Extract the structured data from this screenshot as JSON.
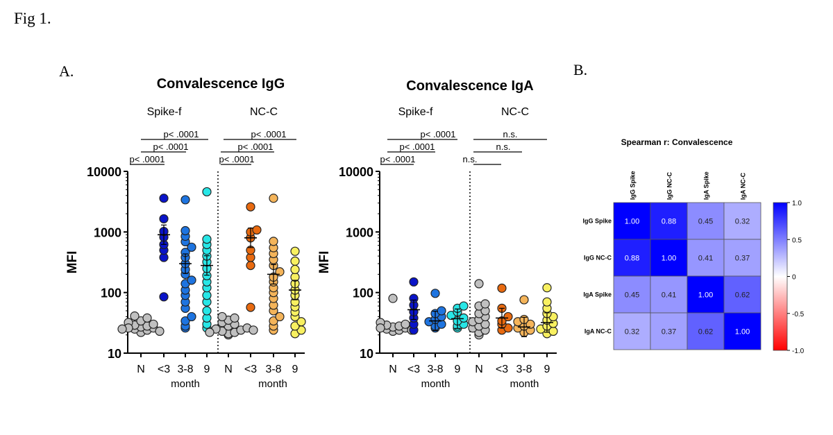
{
  "figure": {
    "label": "Fig 1.",
    "panel_a_label": "A.",
    "panel_b_label": "B."
  },
  "chart_data": [
    {
      "type": "scatter",
      "title": "Convalescence IgG",
      "ylabel": "MFI",
      "yscale": "log",
      "ylim": [
        10,
        10000
      ],
      "yticks": [
        "10",
        "100",
        "1000",
        "10000"
      ],
      "xlabel": "month",
      "groups": [
        {
          "name": "Spike-f",
          "categories": [
            "N",
            "<3",
            "3-8",
            "9"
          ],
          "colors": [
            "#c0c0c0",
            "#0a14c8",
            "#1e74e0",
            "#28e6e6"
          ],
          "means": [
            28,
            900,
            300,
            280
          ],
          "values": [
            [
              22,
              24,
              25,
              26,
              27,
              28,
              29,
              30,
              32,
              34,
              38,
              41,
              26,
              23,
              25
            ],
            [
              85,
              380,
              500,
              620,
              820,
              1020,
              1650,
              3600
            ],
            [
              26,
              28,
              34,
              40,
              55,
              70,
              90,
              110,
              140,
              160,
              200,
              240,
              300,
              380,
              460,
              560,
              690,
              850,
              1050,
              3400
            ],
            [
              26,
              30,
              38,
              50,
              70,
              90,
              120,
              150,
              190,
              250,
              320,
              400,
              500,
              620,
              760,
              4600
            ]
          ]
        },
        {
          "name": "NC-C",
          "categories": [
            "N",
            "<3",
            "3-8",
            "9"
          ],
          "colors": [
            "#c0c0c0",
            "#e86a10",
            "#f4b45a",
            "#f8f060"
          ],
          "means": [
            28,
            800,
            200,
            110
          ],
          "values": [
            [
              20,
              21,
              22,
              23,
              24,
              25,
              26,
              28,
              30,
              32,
              35,
              38,
              40,
              22,
              24
            ],
            [
              57,
              280,
              380,
              500,
              800,
              1000,
              1080,
              2600
            ],
            [
              24,
              28,
              34,
              40,
              50,
              62,
              80,
              100,
              120,
              150,
              180,
              220,
              280,
              350,
              440,
              550,
              700,
              3600
            ],
            [
              21,
              24,
              28,
              33,
              40,
              48,
              58,
              70,
              90,
              110,
              140,
              180,
              240,
              330,
              480
            ]
          ]
        }
      ],
      "significance": [
        {
          "label": "p< .0001"
        },
        {
          "label": "p< .0001"
        },
        {
          "label": "p< .0001"
        },
        {
          "label": "p< .0001"
        },
        {
          "label": "p< .0001"
        },
        {
          "label": "p< .0001"
        }
      ]
    },
    {
      "type": "scatter",
      "title": "Convalescence IgA",
      "ylabel": "MFI",
      "yscale": "log",
      "ylim": [
        10,
        10000
      ],
      "yticks": [
        "10",
        "100",
        "1000",
        "10000"
      ],
      "xlabel": "month",
      "groups": [
        {
          "name": "Spike-f",
          "categories": [
            "N",
            "<3",
            "3-8",
            "9"
          ],
          "colors": [
            "#c0c0c0",
            "#0a14c8",
            "#1e74e0",
            "#28e6e6"
          ],
          "means": [
            27,
            52,
            34,
            37
          ],
          "values": [
            [
              23,
              24,
              25,
              26,
              27,
              28,
              29,
              30,
              32,
              80,
              26,
              24
            ],
            [
              24,
              30,
              38,
              48,
              62,
              80,
              150
            ],
            [
              26,
              28,
              30,
              33,
              36,
              40,
              45,
              50,
              97
            ],
            [
              26,
              28,
              30,
              34,
              38,
              42,
              48,
              55,
              60
            ]
          ]
        },
        {
          "name": "NC-C",
          "categories": [
            "N",
            "<3",
            "3-8",
            "9"
          ],
          "colors": [
            "#c0c0c0",
            "#e86a10",
            "#f4b45a",
            "#f8f060"
          ],
          "means": [
            28,
            38,
            27,
            32
          ],
          "values": [
            [
              20,
              22,
              24,
              26,
              28,
              30,
              33,
              36,
              40,
              45,
              50,
              60,
              65,
              140
            ],
            [
              24,
              26,
              30,
              34,
              40,
              55,
              118
            ],
            [
              22,
              24,
              26,
              28,
              30,
              33,
              36,
              76
            ],
            [
              21,
              23,
              25,
              28,
              31,
              35,
              40,
              45,
              55,
              70,
              120
            ]
          ]
        }
      ],
      "significance": [
        {
          "label": "p< .0001"
        },
        {
          "label": "p< .0001"
        },
        {
          "label": "p< .0001"
        },
        {
          "label": "n.s."
        },
        {
          "label": "n.s."
        },
        {
          "label": "n.s."
        }
      ]
    },
    {
      "type": "heatmap",
      "title": "Spearman r: Convalescence",
      "rows": [
        "IgG Spike",
        "IgG NC-C",
        "IgA Spike",
        "IgA NC-C"
      ],
      "columns": [
        "IgG Spike",
        "IgG NC-C",
        "IgA Spike",
        "IgA NC-C"
      ],
      "values": [
        [
          1.0,
          0.88,
          0.45,
          0.32
        ],
        [
          0.88,
          1.0,
          0.41,
          0.37
        ],
        [
          0.45,
          0.41,
          1.0,
          0.62
        ],
        [
          0.32,
          0.37,
          0.62,
          1.0
        ]
      ],
      "value_labels": [
        [
          "1.00",
          "0.88",
          "0.45",
          "0.32"
        ],
        [
          "0.88",
          "1.00",
          "0.41",
          "0.37"
        ],
        [
          "0.45",
          "0.41",
          "1.00",
          "0.62"
        ],
        [
          "0.32",
          "0.37",
          "0.62",
          "1.00"
        ]
      ],
      "colorbar": {
        "min": -1.0,
        "max": 1.0,
        "ticks": [
          "1.0",
          "0.5",
          "0",
          "-0.5",
          "-1.0"
        ],
        "low_color": "#ff0000",
        "mid_color": "#ffffff",
        "high_color": "#0000ff"
      }
    }
  ]
}
